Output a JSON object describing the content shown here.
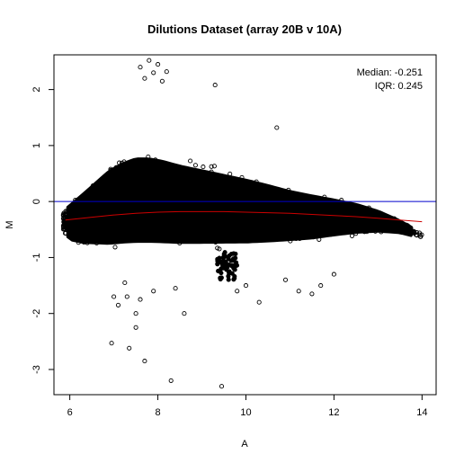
{
  "chart_data": {
    "type": "scatter",
    "title": "Dilutions Dataset (array 20B v 10A)",
    "xlabel": "A",
    "ylabel": "M",
    "xlim": [
      5.64,
      14.32
    ],
    "ylim": [
      -3.45,
      2.62
    ],
    "xticks": [
      6,
      8,
      10,
      12,
      14
    ],
    "yticks": [
      -3,
      -2,
      -1,
      0,
      1,
      2
    ],
    "grid": false,
    "annotations": [
      "Median: -0.251",
      "IQR: 0.245"
    ],
    "reference_line": {
      "y": 0,
      "color": "#0000cc"
    },
    "loess_fit": {
      "color": "#cc0000",
      "x": [
        5.9,
        6.5,
        7.0,
        7.5,
        8.0,
        8.5,
        9.0,
        9.5,
        10.0,
        10.5,
        11.0,
        11.5,
        12.0,
        12.5,
        13.0,
        13.5,
        14.0
      ],
      "y": [
        -0.33,
        -0.28,
        -0.24,
        -0.21,
        -0.19,
        -0.18,
        -0.18,
        -0.18,
        -0.19,
        -0.2,
        -0.21,
        -0.23,
        -0.25,
        -0.27,
        -0.3,
        -0.33,
        -0.36
      ]
    },
    "outliers": {
      "x": [
        7.8,
        7.6,
        8.0,
        7.9,
        7.7,
        8.2,
        8.1,
        9.3,
        10.7,
        7.35,
        7.5,
        7.5,
        7.7,
        8.6,
        9.45,
        6.95,
        7.6,
        7.1,
        7.3,
        7.9,
        8.3,
        8.4,
        7.0,
        7.25,
        9.8,
        10.0,
        10.3,
        10.9,
        11.2,
        11.5,
        11.7,
        12.0
      ],
      "y": [
        2.52,
        2.4,
        2.45,
        2.3,
        2.2,
        2.32,
        2.15,
        2.08,
        1.32,
        -2.62,
        -2.25,
        -2.0,
        -2.85,
        -2.0,
        -3.3,
        -2.53,
        -1.75,
        -1.85,
        -1.7,
        -1.6,
        -3.2,
        -1.55,
        -1.7,
        -1.45,
        -1.6,
        -1.5,
        -1.8,
        -1.4,
        -1.6,
        -1.65,
        -1.5,
        -1.3
      ]
    },
    "cloud": {
      "x": [
        5.85,
        6.0,
        6.3,
        6.6,
        6.9,
        7.2,
        7.5,
        7.8,
        8.1,
        8.5,
        9.0,
        9.5,
        10.0,
        10.5,
        11.0,
        11.5,
        12.0,
        12.5,
        13.0,
        13.5,
        14.0
      ],
      "upper": [
        -0.1,
        0.05,
        0.3,
        0.55,
        0.8,
        0.95,
        1.05,
        1.05,
        1.0,
        0.9,
        0.8,
        0.7,
        0.6,
        0.48,
        0.35,
        0.25,
        0.15,
        0.05,
        -0.1,
        -0.3,
        -0.55
      ],
      "lower": [
        -0.6,
        -0.8,
        -0.9,
        -0.95,
        -1.0,
        -1.0,
        -1.0,
        -1.0,
        -1.0,
        -1.0,
        -0.98,
        -0.96,
        -0.94,
        -0.9,
        -0.85,
        -0.8,
        -0.72,
        -0.65,
        -0.6,
        -0.6,
        -0.68
      ],
      "dip": {
        "x_from": 9.35,
        "x_to": 9.8,
        "y_min": -1.4
      }
    }
  }
}
